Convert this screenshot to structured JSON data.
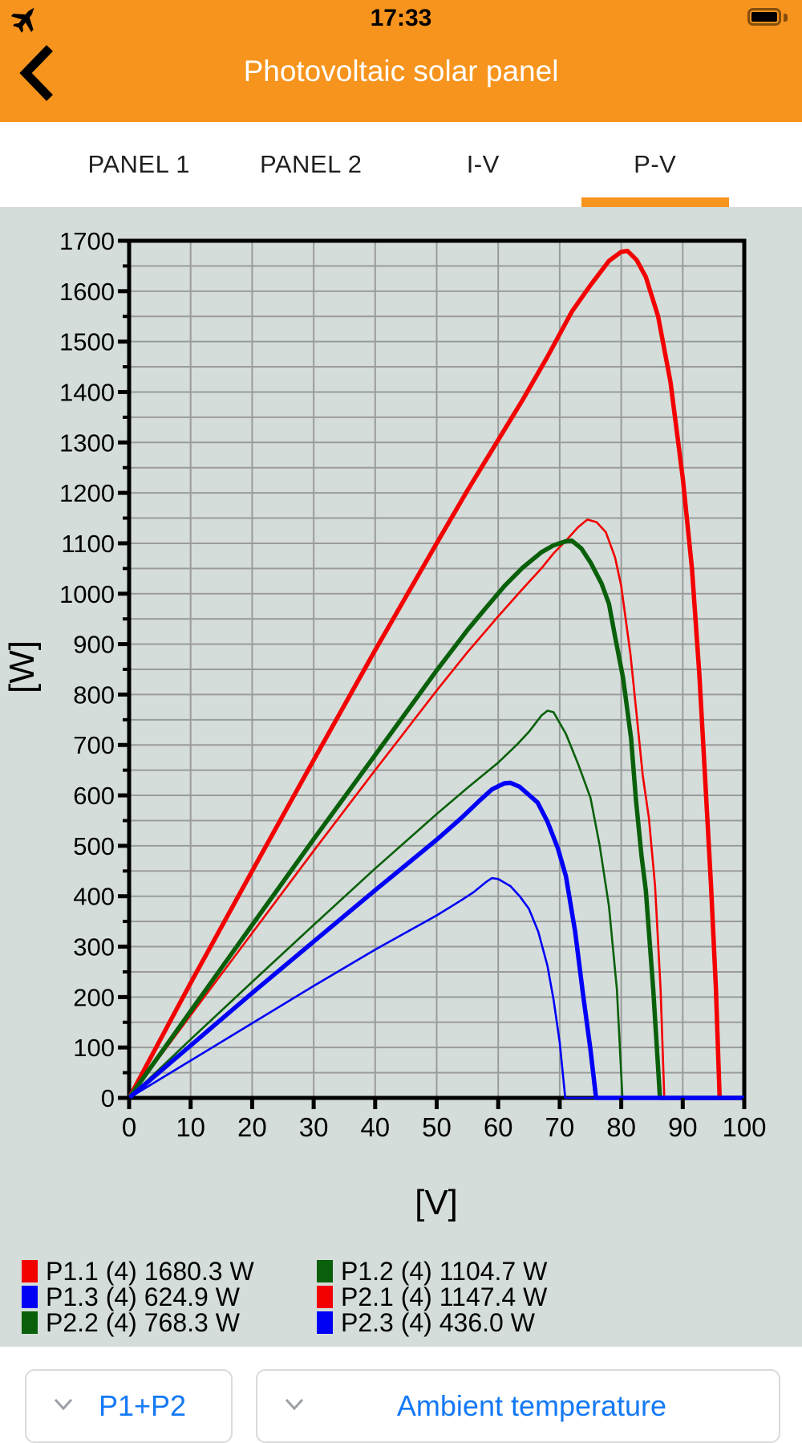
{
  "colors": {
    "accent_orange": "#F7941D",
    "panel_background": "#D4DDDA",
    "grid_line": "#9B9B9B",
    "axis_black": "#000000",
    "series_red": "#F30000",
    "series_green": "#0A600A",
    "series_blue": "#0000F6",
    "link_blue": "#1479F6"
  },
  "status_bar": {
    "time": "17:33",
    "left_icon": "airplane-mode-icon",
    "right_icon": "battery-full-icon"
  },
  "header": {
    "title": "Photovoltaic solar panel",
    "back_icon": "chevron-left"
  },
  "tabs": {
    "items": [
      {
        "label": "PANEL 1",
        "active": false
      },
      {
        "label": "PANEL 2",
        "active": false
      },
      {
        "label": "I-V",
        "active": false
      },
      {
        "label": "P-V",
        "active": true
      }
    ]
  },
  "chart_data": {
    "type": "line",
    "title": "",
    "xlabel": "[V]",
    "ylabel": "[W]",
    "xlim": [
      0,
      100
    ],
    "ylim": [
      0,
      1700
    ],
    "x_tick_step": 10,
    "y_tick_step": 100,
    "y_minor_step": 50,
    "grid": true,
    "legend_position": "bottom-left",
    "series": [
      {
        "name": "P1.1",
        "count": 4,
        "pmax_w": 1680.3,
        "vmp_v": 80,
        "voc_v": 96.0,
        "color": "#F30000",
        "thick": true,
        "points_v_w": [
          [
            0,
            0
          ],
          [
            10,
            228
          ],
          [
            20,
            450
          ],
          [
            30,
            670
          ],
          [
            40,
            888
          ],
          [
            50,
            1100
          ],
          [
            55,
            1205
          ],
          [
            60,
            1305
          ],
          [
            64,
            1385
          ],
          [
            68,
            1470
          ],
          [
            72,
            1560
          ],
          [
            75,
            1612
          ],
          [
            78,
            1660
          ],
          [
            80,
            1678
          ],
          [
            81,
            1680
          ],
          [
            82.5,
            1662
          ],
          [
            84,
            1628
          ],
          [
            86,
            1550
          ],
          [
            88,
            1420
          ],
          [
            90,
            1230
          ],
          [
            91.5,
            1050
          ],
          [
            92.7,
            840
          ],
          [
            93.7,
            620
          ],
          [
            94.6,
            420
          ],
          [
            95.4,
            215
          ],
          [
            96,
            0
          ],
          [
            100,
            0
          ]
        ]
      },
      {
        "name": "P1.2",
        "count": 4,
        "pmax_w": 1104.7,
        "vmp_v": 71.5,
        "voc_v": 86.3,
        "color": "#0A600A",
        "thick": true,
        "points_v_w": [
          [
            0,
            0
          ],
          [
            10,
            172
          ],
          [
            20,
            343
          ],
          [
            30,
            513
          ],
          [
            40,
            680
          ],
          [
            50,
            848
          ],
          [
            55,
            928
          ],
          [
            58,
            972
          ],
          [
            61,
            1015
          ],
          [
            64,
            1052
          ],
          [
            67,
            1082
          ],
          [
            69,
            1096
          ],
          [
            71,
            1104
          ],
          [
            72,
            1105
          ],
          [
            73.5,
            1090
          ],
          [
            75,
            1062
          ],
          [
            76.8,
            1020
          ],
          [
            78,
            980
          ],
          [
            79,
            915
          ],
          [
            80.3,
            833
          ],
          [
            81.6,
            713
          ],
          [
            82.4,
            590
          ],
          [
            83.3,
            480
          ],
          [
            84,
            411
          ],
          [
            85.2,
            215
          ],
          [
            86.3,
            0
          ],
          [
            100,
            0
          ]
        ]
      },
      {
        "name": "P1.3",
        "count": 4,
        "pmax_w": 624.9,
        "vmp_v": 61.5,
        "voc_v": 75.9,
        "color": "#0000F6",
        "thick": true,
        "points_v_w": [
          [
            0,
            0
          ],
          [
            10,
            104
          ],
          [
            20,
            208
          ],
          [
            30,
            310
          ],
          [
            40,
            412
          ],
          [
            45,
            462
          ],
          [
            50,
            512
          ],
          [
            54,
            555
          ],
          [
            57,
            590
          ],
          [
            59,
            612
          ],
          [
            61,
            624
          ],
          [
            62,
            625
          ],
          [
            63.5,
            617
          ],
          [
            65,
            601
          ],
          [
            66.4,
            586
          ],
          [
            68,
            548
          ],
          [
            69.7,
            495
          ],
          [
            71,
            440
          ],
          [
            72.5,
            330
          ],
          [
            73.8,
            205
          ],
          [
            75,
            95
          ],
          [
            75.9,
            0
          ],
          [
            100,
            0
          ]
        ]
      },
      {
        "name": "P2.1",
        "count": 4,
        "pmax_w": 1147.4,
        "vmp_v": 74.5,
        "voc_v": 87.0,
        "color": "#F30000",
        "thick": false,
        "points_v_w": [
          [
            0,
            0
          ],
          [
            10,
            164
          ],
          [
            20,
            327
          ],
          [
            30,
            490
          ],
          [
            40,
            650
          ],
          [
            50,
            808
          ],
          [
            55,
            884
          ],
          [
            60,
            955
          ],
          [
            64,
            1010
          ],
          [
            67,
            1050
          ],
          [
            69,
            1080
          ],
          [
            71,
            1105
          ],
          [
            73,
            1132
          ],
          [
            74.5,
            1147
          ],
          [
            76,
            1142
          ],
          [
            77.5,
            1122
          ],
          [
            79,
            1072
          ],
          [
            80,
            1015
          ],
          [
            81.5,
            880
          ],
          [
            82.5,
            760
          ],
          [
            83.5,
            640
          ],
          [
            84.5,
            555
          ],
          [
            85.5,
            420
          ],
          [
            86.4,
            215
          ],
          [
            87,
            0
          ],
          [
            100,
            0
          ]
        ]
      },
      {
        "name": "P2.2",
        "count": 4,
        "pmax_w": 768.3,
        "vmp_v": 68,
        "voc_v": 80.2,
        "color": "#0A600A",
        "thick": false,
        "points_v_w": [
          [
            0,
            0
          ],
          [
            10,
            116
          ],
          [
            20,
            230
          ],
          [
            30,
            343
          ],
          [
            40,
            455
          ],
          [
            50,
            563
          ],
          [
            55,
            615
          ],
          [
            60,
            665
          ],
          [
            63,
            700
          ],
          [
            65,
            726
          ],
          [
            67,
            758
          ],
          [
            68,
            768
          ],
          [
            69,
            765
          ],
          [
            71,
            722
          ],
          [
            73,
            662
          ],
          [
            75,
            595
          ],
          [
            76.5,
            500
          ],
          [
            78,
            380
          ],
          [
            79.3,
            215
          ],
          [
            80.2,
            0
          ],
          [
            100,
            0
          ]
        ]
      },
      {
        "name": "P2.3",
        "count": 4,
        "pmax_w": 436.0,
        "vmp_v": 59,
        "voc_v": 70.9,
        "color": "#0000F6",
        "thick": false,
        "points_v_w": [
          [
            0,
            0
          ],
          [
            10,
            74
          ],
          [
            20,
            148
          ],
          [
            30,
            222
          ],
          [
            40,
            294
          ],
          [
            45,
            328
          ],
          [
            50,
            362
          ],
          [
            54,
            392
          ],
          [
            56,
            408
          ],
          [
            58,
            428
          ],
          [
            59,
            436
          ],
          [
            60,
            434
          ],
          [
            62,
            420
          ],
          [
            63.5,
            400
          ],
          [
            65,
            375
          ],
          [
            66.5,
            330
          ],
          [
            68,
            262
          ],
          [
            69,
            195
          ],
          [
            70,
            110
          ],
          [
            70.9,
            0
          ],
          [
            100,
            0
          ]
        ]
      }
    ],
    "draw_order": [
      3,
      4,
      5,
      0,
      1,
      2
    ],
    "legend_value_unit": "W"
  },
  "footer": {
    "selectors": [
      {
        "value": "P1+P2",
        "icon": "chevron-down-icon"
      },
      {
        "value": "Ambient temperature",
        "icon": "chevron-down-icon"
      }
    ]
  }
}
